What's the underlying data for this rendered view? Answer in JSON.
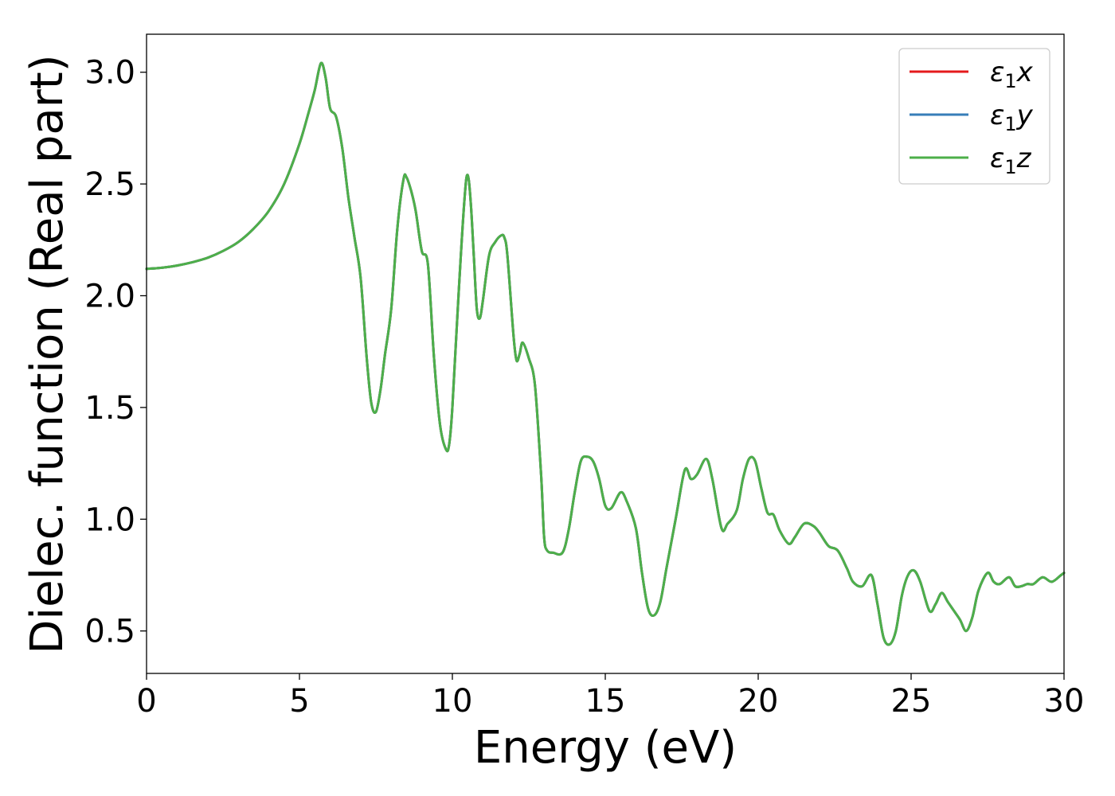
{
  "chart_data": {
    "type": "line",
    "xlabel": "Energy (eV)",
    "ylabel": "Dielec. function (Real part)",
    "xlim": [
      0,
      30
    ],
    "ylim": [
      0.31,
      3.17
    ],
    "xticks": [
      0,
      5,
      10,
      15,
      20,
      25,
      30
    ],
    "yticks": [
      0.5,
      1.0,
      1.5,
      2.0,
      2.5,
      3.0
    ],
    "xtick_labels": [
      "0",
      "5",
      "10",
      "15",
      "20",
      "25",
      "30"
    ],
    "ytick_labels": [
      "0.5",
      "1.0",
      "1.5",
      "2.0",
      "2.5",
      "3.0"
    ],
    "grid": false,
    "legend_position": "top-right",
    "legend": [
      {
        "symbol": "ε",
        "sub": "1",
        "var": "x",
        "color": "#e41a1c"
      },
      {
        "symbol": "ε",
        "sub": "1",
        "var": "y",
        "color": "#377eb8"
      },
      {
        "symbol": "ε",
        "sub": "1",
        "var": "z",
        "color": "#4daf4a"
      }
    ],
    "x": [
      0,
      0.5,
      1.0,
      1.5,
      2.0,
      2.5,
      3.0,
      3.5,
      4.0,
      4.5,
      5.0,
      5.3,
      5.5,
      5.7,
      5.85,
      6.0,
      6.2,
      6.4,
      6.6,
      6.8,
      7.0,
      7.2,
      7.35,
      7.5,
      7.65,
      7.8,
      8.0,
      8.2,
      8.4,
      8.5,
      8.65,
      8.8,
      9.0,
      9.2,
      9.4,
      9.6,
      9.8,
      9.9,
      10.0,
      10.2,
      10.4,
      10.5,
      10.6,
      10.7,
      10.8,
      10.9,
      11.0,
      11.2,
      11.4,
      11.6,
      11.7,
      11.8,
      12.0,
      12.1,
      12.2,
      12.3,
      12.5,
      12.7,
      12.9,
      13.0,
      13.1,
      13.3,
      13.6,
      13.8,
      14.0,
      14.2,
      14.4,
      14.6,
      14.8,
      15.0,
      15.2,
      15.5,
      15.7,
      16.0,
      16.2,
      16.4,
      16.6,
      16.8,
      17.0,
      17.3,
      17.6,
      17.8,
      18.0,
      18.3,
      18.5,
      18.8,
      19.0,
      19.3,
      19.5,
      19.7,
      19.9,
      20.1,
      20.3,
      20.5,
      20.7,
      21.0,
      21.2,
      21.5,
      21.8,
      22.0,
      22.3,
      22.6,
      22.9,
      23.1,
      23.4,
      23.7,
      23.9,
      24.1,
      24.3,
      24.5,
      24.7,
      24.9,
      25.1,
      25.3,
      25.6,
      25.8,
      26.0,
      26.2,
      26.4,
      26.6,
      26.8,
      27.0,
      27.2,
      27.5,
      27.7,
      27.9,
      28.2,
      28.4,
      28.6,
      28.8,
      29.0,
      29.3,
      29.6,
      29.9,
      30.0
    ],
    "series": [
      {
        "color": "#e41a1c",
        "values": [
          2.12,
          2.125,
          2.135,
          2.15,
          2.17,
          2.2,
          2.24,
          2.3,
          2.38,
          2.5,
          2.68,
          2.82,
          2.92,
          3.04,
          2.98,
          2.84,
          2.8,
          2.66,
          2.44,
          2.26,
          2.08,
          1.72,
          1.52,
          1.48,
          1.58,
          1.74,
          1.94,
          2.3,
          2.52,
          2.53,
          2.47,
          2.38,
          2.2,
          2.14,
          1.72,
          1.42,
          1.31,
          1.34,
          1.5,
          2.0,
          2.44,
          2.54,
          2.42,
          2.18,
          1.94,
          1.9,
          1.98,
          2.18,
          2.24,
          2.27,
          2.26,
          2.18,
          1.82,
          1.71,
          1.74,
          1.79,
          1.72,
          1.6,
          1.2,
          0.92,
          0.86,
          0.85,
          0.85,
          0.95,
          1.12,
          1.26,
          1.28,
          1.26,
          1.18,
          1.06,
          1.05,
          1.12,
          1.08,
          0.96,
          0.76,
          0.6,
          0.57,
          0.63,
          0.78,
          1.0,
          1.22,
          1.18,
          1.2,
          1.27,
          1.18,
          0.96,
          0.98,
          1.04,
          1.18,
          1.27,
          1.26,
          1.14,
          1.03,
          1.02,
          0.95,
          0.89,
          0.92,
          0.98,
          0.97,
          0.94,
          0.88,
          0.86,
          0.78,
          0.72,
          0.7,
          0.75,
          0.62,
          0.47,
          0.44,
          0.5,
          0.66,
          0.75,
          0.77,
          0.72,
          0.59,
          0.62,
          0.67,
          0.63,
          0.59,
          0.55,
          0.5,
          0.56,
          0.68,
          0.76,
          0.72,
          0.71,
          0.74,
          0.7,
          0.7,
          0.71,
          0.71,
          0.74,
          0.72,
          0.75,
          0.76
        ]
      },
      {
        "color": "#377eb8",
        "values": [
          2.12,
          2.125,
          2.135,
          2.15,
          2.17,
          2.2,
          2.24,
          2.3,
          2.38,
          2.5,
          2.68,
          2.82,
          2.92,
          3.04,
          2.98,
          2.84,
          2.8,
          2.66,
          2.44,
          2.26,
          2.08,
          1.72,
          1.52,
          1.48,
          1.58,
          1.74,
          1.94,
          2.3,
          2.52,
          2.53,
          2.47,
          2.38,
          2.2,
          2.14,
          1.72,
          1.42,
          1.31,
          1.34,
          1.5,
          2.0,
          2.44,
          2.54,
          2.42,
          2.18,
          1.94,
          1.9,
          1.98,
          2.18,
          2.24,
          2.27,
          2.26,
          2.18,
          1.82,
          1.71,
          1.74,
          1.79,
          1.72,
          1.6,
          1.2,
          0.92,
          0.86,
          0.85,
          0.85,
          0.95,
          1.12,
          1.26,
          1.28,
          1.26,
          1.18,
          1.06,
          1.05,
          1.12,
          1.08,
          0.96,
          0.76,
          0.6,
          0.57,
          0.63,
          0.78,
          1.0,
          1.22,
          1.18,
          1.2,
          1.27,
          1.18,
          0.96,
          0.98,
          1.04,
          1.18,
          1.27,
          1.26,
          1.14,
          1.03,
          1.02,
          0.95,
          0.89,
          0.92,
          0.98,
          0.97,
          0.94,
          0.88,
          0.86,
          0.78,
          0.72,
          0.7,
          0.75,
          0.62,
          0.47,
          0.44,
          0.5,
          0.66,
          0.75,
          0.77,
          0.72,
          0.59,
          0.62,
          0.67,
          0.63,
          0.59,
          0.55,
          0.5,
          0.56,
          0.68,
          0.76,
          0.72,
          0.71,
          0.74,
          0.7,
          0.7,
          0.71,
          0.71,
          0.74,
          0.72,
          0.75,
          0.76
        ]
      },
      {
        "color": "#4daf4a",
        "values": [
          2.12,
          2.125,
          2.135,
          2.15,
          2.17,
          2.2,
          2.24,
          2.3,
          2.38,
          2.5,
          2.68,
          2.82,
          2.92,
          3.04,
          2.98,
          2.84,
          2.8,
          2.66,
          2.44,
          2.26,
          2.08,
          1.72,
          1.52,
          1.48,
          1.58,
          1.74,
          1.94,
          2.3,
          2.52,
          2.53,
          2.47,
          2.38,
          2.2,
          2.14,
          1.72,
          1.42,
          1.31,
          1.34,
          1.5,
          2.0,
          2.44,
          2.54,
          2.42,
          2.18,
          1.94,
          1.9,
          1.98,
          2.18,
          2.24,
          2.27,
          2.26,
          2.18,
          1.82,
          1.71,
          1.74,
          1.79,
          1.72,
          1.6,
          1.2,
          0.92,
          0.86,
          0.85,
          0.85,
          0.95,
          1.12,
          1.26,
          1.28,
          1.26,
          1.18,
          1.06,
          1.05,
          1.12,
          1.08,
          0.96,
          0.76,
          0.6,
          0.57,
          0.63,
          0.78,
          1.0,
          1.22,
          1.18,
          1.2,
          1.27,
          1.18,
          0.96,
          0.98,
          1.04,
          1.18,
          1.27,
          1.26,
          1.14,
          1.03,
          1.02,
          0.95,
          0.89,
          0.92,
          0.98,
          0.97,
          0.94,
          0.88,
          0.86,
          0.78,
          0.72,
          0.7,
          0.75,
          0.62,
          0.47,
          0.44,
          0.5,
          0.66,
          0.75,
          0.77,
          0.72,
          0.59,
          0.62,
          0.67,
          0.63,
          0.59,
          0.55,
          0.5,
          0.56,
          0.68,
          0.76,
          0.72,
          0.71,
          0.74,
          0.7,
          0.7,
          0.71,
          0.71,
          0.74,
          0.72,
          0.75,
          0.76
        ]
      }
    ]
  }
}
